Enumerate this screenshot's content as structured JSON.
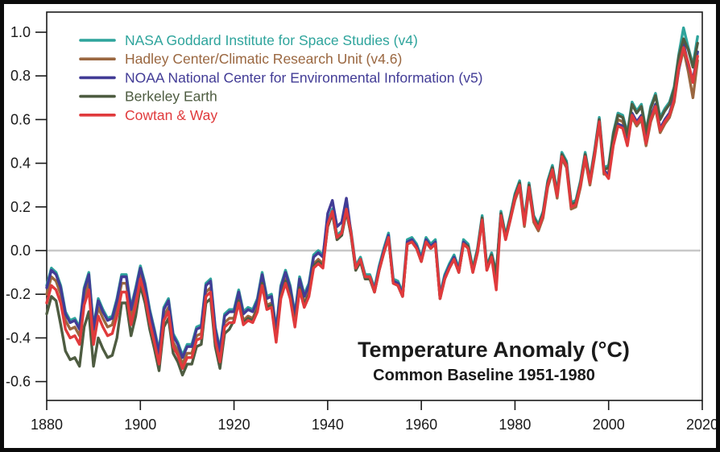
{
  "style": {
    "background": "#ffffff",
    "frame_color": "#0b0b0b",
    "axis_color": "#1a1a1a",
    "zero_line_color": "#c8c8c8",
    "text_color": "#1a1a1a"
  },
  "chart_data": {
    "type": "line",
    "title": "Temperature Anomaly (°C)",
    "subtitle": "Common Baseline 1951-1980",
    "xlabel": "",
    "ylabel": "",
    "xlim": [
      1880,
      2020
    ],
    "ylim": [
      -0.69,
      1.09
    ],
    "grid": false,
    "zero_line": 0.0,
    "legend_position": "top-left",
    "x_ticks": [
      1880,
      1900,
      1920,
      1940,
      1960,
      1980,
      2000,
      2020
    ],
    "y_ticks": [
      1.0,
      0.8,
      0.6,
      0.4,
      0.2,
      0.0,
      -0.2,
      -0.4,
      -0.6
    ],
    "y_tick_labels": [
      "1.0",
      "0.8",
      "0.6",
      "0.4",
      "0.2",
      "0.0",
      "-0.2",
      "-0.4",
      "-0.6"
    ],
    "x": {
      "start": 1880,
      "end": 2019,
      "step": 1
    },
    "series": [
      {
        "id": "nasa-giss",
        "name": "NASA Goddard Institute for Space Studies (v4)",
        "color": "#2EA49C",
        "values": [
          -0.16,
          -0.08,
          -0.1,
          -0.16,
          -0.28,
          -0.32,
          -0.31,
          -0.35,
          -0.17,
          -0.1,
          -0.35,
          -0.22,
          -0.27,
          -0.31,
          -0.3,
          -0.22,
          -0.11,
          -0.11,
          -0.26,
          -0.17,
          -0.07,
          -0.15,
          -0.27,
          -0.36,
          -0.46,
          -0.26,
          -0.22,
          -0.38,
          -0.42,
          -0.48,
          -0.43,
          -0.43,
          -0.35,
          -0.34,
          -0.15,
          -0.13,
          -0.35,
          -0.45,
          -0.29,
          -0.27,
          -0.27,
          -0.18,
          -0.28,
          -0.26,
          -0.27,
          -0.22,
          -0.1,
          -0.21,
          -0.2,
          -0.36,
          -0.16,
          -0.09,
          -0.16,
          -0.29,
          -0.12,
          -0.2,
          -0.15,
          -0.02,
          0.0,
          -0.02,
          0.13,
          0.19,
          0.07,
          0.09,
          0.2,
          0.09,
          -0.07,
          -0.03,
          -0.11,
          -0.11,
          -0.17,
          -0.07,
          0.01,
          0.08,
          -0.13,
          -0.14,
          -0.19,
          0.05,
          0.06,
          0.03,
          -0.03,
          0.06,
          0.03,
          0.05,
          -0.2,
          -0.11,
          -0.06,
          -0.02,
          -0.08,
          0.05,
          0.03,
          -0.08,
          0.01,
          0.16,
          -0.07,
          -0.01,
          -0.1,
          0.18,
          0.07,
          0.16,
          0.26,
          0.32,
          0.14,
          0.31,
          0.16,
          0.12,
          0.18,
          0.32,
          0.39,
          0.27,
          0.45,
          0.41,
          0.22,
          0.23,
          0.32,
          0.45,
          0.33,
          0.46,
          0.61,
          0.38,
          0.39,
          0.54,
          0.63,
          0.62,
          0.54,
          0.68,
          0.64,
          0.67,
          0.55,
          0.66,
          0.72,
          0.61,
          0.65,
          0.68,
          0.75,
          0.9,
          1.02,
          0.93,
          0.85,
          0.98
        ]
      },
      {
        "id": "hadley-crut",
        "name": "Hadley Center/Climatic Research Unit (v4.6)",
        "color": "#9A6740",
        "values": [
          -0.2,
          -0.12,
          -0.14,
          -0.2,
          -0.32,
          -0.36,
          -0.35,
          -0.39,
          -0.21,
          -0.14,
          -0.39,
          -0.26,
          -0.31,
          -0.35,
          -0.34,
          -0.26,
          -0.15,
          -0.15,
          -0.3,
          -0.21,
          -0.11,
          -0.19,
          -0.31,
          -0.4,
          -0.5,
          -0.3,
          -0.26,
          -0.42,
          -0.46,
          -0.52,
          -0.47,
          -0.47,
          -0.39,
          -0.38,
          -0.19,
          -0.17,
          -0.39,
          -0.49,
          -0.33,
          -0.31,
          -0.31,
          -0.22,
          -0.32,
          -0.3,
          -0.31,
          -0.26,
          -0.14,
          -0.25,
          -0.24,
          -0.4,
          -0.2,
          -0.13,
          -0.2,
          -0.33,
          -0.16,
          -0.24,
          -0.19,
          -0.06,
          -0.04,
          -0.06,
          0.11,
          0.17,
          0.05,
          0.07,
          0.18,
          0.07,
          -0.09,
          -0.05,
          -0.13,
          -0.13,
          -0.19,
          -0.09,
          -0.01,
          0.06,
          -0.15,
          -0.16,
          -0.21,
          0.03,
          0.04,
          0.01,
          -0.05,
          0.04,
          0.01,
          0.03,
          -0.22,
          -0.13,
          -0.08,
          -0.04,
          -0.1,
          0.03,
          0.01,
          -0.1,
          -0.01,
          0.14,
          -0.09,
          -0.03,
          -0.12,
          0.16,
          0.05,
          0.14,
          0.23,
          0.29,
          0.11,
          0.28,
          0.13,
          0.09,
          0.15,
          0.29,
          0.36,
          0.24,
          0.42,
          0.38,
          0.19,
          0.2,
          0.29,
          0.42,
          0.3,
          0.43,
          0.58,
          0.35,
          0.36,
          0.51,
          0.6,
          0.59,
          0.51,
          0.61,
          0.57,
          0.6,
          0.48,
          0.59,
          0.65,
          0.54,
          0.58,
          0.61,
          0.68,
          0.83,
          0.92,
          0.82,
          0.7,
          0.87
        ]
      },
      {
        "id": "noaa-ncei",
        "name": "NOAA National Center for Environmental Information (v5)",
        "color": "#423C96",
        "values": [
          -0.17,
          -0.09,
          -0.11,
          -0.17,
          -0.29,
          -0.33,
          -0.32,
          -0.36,
          -0.18,
          -0.11,
          -0.36,
          -0.23,
          -0.28,
          -0.32,
          -0.31,
          -0.23,
          -0.12,
          -0.12,
          -0.27,
          -0.18,
          -0.08,
          -0.16,
          -0.28,
          -0.37,
          -0.47,
          -0.27,
          -0.23,
          -0.39,
          -0.43,
          -0.49,
          -0.44,
          -0.44,
          -0.36,
          -0.35,
          -0.16,
          -0.14,
          -0.36,
          -0.46,
          -0.3,
          -0.28,
          -0.28,
          -0.19,
          -0.29,
          -0.27,
          -0.28,
          -0.23,
          -0.11,
          -0.22,
          -0.21,
          -0.37,
          -0.17,
          -0.1,
          -0.17,
          -0.3,
          -0.13,
          -0.21,
          -0.16,
          -0.03,
          -0.01,
          -0.03,
          0.17,
          0.23,
          0.11,
          0.13,
          0.24,
          0.08,
          -0.08,
          -0.04,
          -0.12,
          -0.12,
          -0.18,
          -0.08,
          0.0,
          0.07,
          -0.14,
          -0.15,
          -0.2,
          0.04,
          0.05,
          0.02,
          -0.04,
          0.05,
          0.02,
          0.04,
          -0.21,
          -0.12,
          -0.07,
          -0.03,
          -0.09,
          0.04,
          0.02,
          -0.09,
          0.0,
          0.15,
          -0.08,
          -0.02,
          -0.11,
          0.17,
          0.06,
          0.15,
          0.25,
          0.31,
          0.13,
          0.3,
          0.15,
          0.11,
          0.17,
          0.31,
          0.38,
          0.26,
          0.44,
          0.4,
          0.21,
          0.22,
          0.31,
          0.44,
          0.32,
          0.45,
          0.6,
          0.37,
          0.34,
          0.49,
          0.58,
          0.57,
          0.49,
          0.63,
          0.59,
          0.62,
          0.5,
          0.61,
          0.67,
          0.56,
          0.6,
          0.63,
          0.7,
          0.83,
          0.95,
          0.85,
          0.78,
          0.91
        ]
      },
      {
        "id": "berkeley-earth",
        "name": "Berkeley Earth",
        "color": "#4E5C41",
        "values": [
          -0.29,
          -0.21,
          -0.23,
          -0.34,
          -0.46,
          -0.5,
          -0.49,
          -0.53,
          -0.35,
          -0.28,
          -0.53,
          -0.4,
          -0.45,
          -0.49,
          -0.48,
          -0.4,
          -0.24,
          -0.24,
          -0.39,
          -0.3,
          -0.16,
          -0.24,
          -0.36,
          -0.45,
          -0.55,
          -0.35,
          -0.31,
          -0.47,
          -0.51,
          -0.57,
          -0.52,
          -0.52,
          -0.44,
          -0.43,
          -0.24,
          -0.22,
          -0.44,
          -0.54,
          -0.38,
          -0.36,
          -0.32,
          -0.23,
          -0.33,
          -0.31,
          -0.32,
          -0.27,
          -0.15,
          -0.26,
          -0.25,
          -0.41,
          -0.21,
          -0.14,
          -0.21,
          -0.34,
          -0.17,
          -0.25,
          -0.2,
          -0.07,
          -0.05,
          -0.07,
          0.11,
          0.17,
          0.05,
          0.07,
          0.18,
          0.07,
          -0.09,
          -0.05,
          -0.13,
          -0.13,
          -0.19,
          -0.09,
          -0.01,
          0.06,
          -0.15,
          -0.16,
          -0.21,
          0.03,
          0.04,
          0.01,
          -0.05,
          0.04,
          0.01,
          0.03,
          -0.22,
          -0.13,
          -0.08,
          -0.04,
          -0.1,
          0.03,
          0.02,
          -0.09,
          0.0,
          0.15,
          -0.08,
          -0.02,
          -0.11,
          0.17,
          0.06,
          0.15,
          0.25,
          0.31,
          0.13,
          0.3,
          0.15,
          0.11,
          0.17,
          0.31,
          0.38,
          0.26,
          0.44,
          0.4,
          0.21,
          0.22,
          0.31,
          0.44,
          0.32,
          0.45,
          0.6,
          0.37,
          0.38,
          0.53,
          0.62,
          0.61,
          0.53,
          0.67,
          0.63,
          0.66,
          0.54,
          0.65,
          0.71,
          0.6,
          0.64,
          0.67,
          0.74,
          0.89,
          0.97,
          0.92,
          0.84,
          0.95
        ]
      },
      {
        "id": "cowtan-way",
        "name": "Cowtan & Way",
        "color": "#E03A3C",
        "values": [
          -0.24,
          -0.16,
          -0.18,
          -0.24,
          -0.36,
          -0.4,
          -0.39,
          -0.43,
          -0.25,
          -0.18,
          -0.43,
          -0.3,
          -0.35,
          -0.39,
          -0.38,
          -0.3,
          -0.19,
          -0.19,
          -0.34,
          -0.25,
          -0.13,
          -0.21,
          -0.33,
          -0.42,
          -0.52,
          -0.32,
          -0.28,
          -0.44,
          -0.48,
          -0.54,
          -0.49,
          -0.49,
          -0.41,
          -0.4,
          -0.21,
          -0.19,
          -0.41,
          -0.51,
          -0.35,
          -0.33,
          -0.33,
          -0.24,
          -0.34,
          -0.32,
          -0.33,
          -0.28,
          -0.16,
          -0.27,
          -0.26,
          -0.42,
          -0.22,
          -0.15,
          -0.22,
          -0.35,
          -0.18,
          -0.26,
          -0.21,
          -0.08,
          -0.06,
          -0.08,
          0.12,
          0.18,
          0.06,
          0.08,
          0.19,
          0.08,
          -0.08,
          -0.04,
          -0.12,
          -0.12,
          -0.19,
          -0.09,
          -0.01,
          0.06,
          -0.15,
          -0.16,
          -0.21,
          0.03,
          0.04,
          0.01,
          -0.05,
          0.04,
          0.01,
          0.03,
          -0.22,
          -0.13,
          -0.08,
          -0.04,
          -0.1,
          0.03,
          0.01,
          -0.1,
          -0.01,
          0.14,
          -0.09,
          -0.03,
          -0.18,
          0.16,
          0.05,
          0.14,
          0.24,
          0.3,
          0.12,
          0.29,
          0.14,
          0.1,
          0.16,
          0.3,
          0.37,
          0.25,
          0.43,
          0.39,
          0.2,
          0.21,
          0.3,
          0.43,
          0.31,
          0.44,
          0.59,
          0.36,
          0.33,
          0.48,
          0.57,
          0.56,
          0.48,
          0.62,
          0.58,
          0.61,
          0.49,
          0.6,
          0.66,
          0.55,
          0.59,
          0.62,
          0.69,
          0.84,
          0.93,
          0.86,
          0.77,
          0.89
        ]
      }
    ]
  }
}
